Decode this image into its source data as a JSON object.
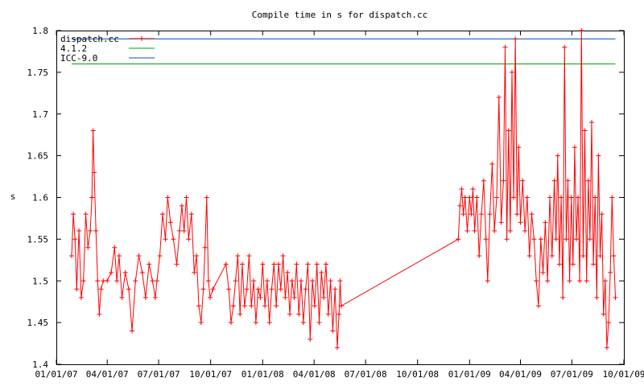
{
  "chart_data": {
    "type": "line",
    "title": "Compile time in s for dispatch.cc",
    "ylabel": "s",
    "xlabel": "",
    "x_axis": "date",
    "xlim": [
      "2007-01-01",
      "2009-10-01"
    ],
    "ylim": [
      1.4,
      1.8
    ],
    "grid": false,
    "legend_position": "top-left",
    "x_ticks": [
      {
        "value": "2007-01-01",
        "label": "01/01/07"
      },
      {
        "value": "2007-04-01",
        "label": "04/01/07"
      },
      {
        "value": "2007-07-01",
        "label": "07/01/07"
      },
      {
        "value": "2007-10-01",
        "label": "10/01/07"
      },
      {
        "value": "2008-01-01",
        "label": "01/01/08"
      },
      {
        "value": "2008-04-01",
        "label": "04/01/08"
      },
      {
        "value": "2008-07-01",
        "label": "07/01/08"
      },
      {
        "value": "2008-10-01",
        "label": "10/01/08"
      },
      {
        "value": "2009-01-01",
        "label": "01/01/09"
      },
      {
        "value": "2009-04-01",
        "label": "04/01/09"
      },
      {
        "value": "2009-07-01",
        "label": "07/01/09"
      },
      {
        "value": "2009-10-01",
        "label": "10/01/09"
      }
    ],
    "y_ticks": [
      {
        "value": 1.4,
        "label": "1.4"
      },
      {
        "value": 1.45,
        "label": "1.45"
      },
      {
        "value": 1.5,
        "label": "1.5"
      },
      {
        "value": 1.55,
        "label": "1.55"
      },
      {
        "value": 1.6,
        "label": "1.6"
      },
      {
        "value": 1.65,
        "label": "1.65"
      },
      {
        "value": 1.7,
        "label": "1.7"
      },
      {
        "value": 1.75,
        "label": "1.75"
      },
      {
        "value": 1.8,
        "label": "1.8"
      }
    ],
    "series": [
      {
        "name": "dispatch.cc",
        "color": "#ff0000",
        "marker": "plus",
        "points": [
          [
            "2007-01-28",
            1.53
          ],
          [
            "2007-01-31",
            1.58
          ],
          [
            "2007-02-03",
            1.55
          ],
          [
            "2007-02-06",
            1.49
          ],
          [
            "2007-02-10",
            1.56
          ],
          [
            "2007-02-14",
            1.48
          ],
          [
            "2007-02-18",
            1.5
          ],
          [
            "2007-02-22",
            1.58
          ],
          [
            "2007-02-26",
            1.54
          ],
          [
            "2007-03-02",
            1.56
          ],
          [
            "2007-03-05",
            1.6
          ],
          [
            "2007-03-07",
            1.68
          ],
          [
            "2007-03-09",
            1.63
          ],
          [
            "2007-03-12",
            1.56
          ],
          [
            "2007-03-15",
            1.5
          ],
          [
            "2007-03-18",
            1.46
          ],
          [
            "2007-03-21",
            1.49
          ],
          [
            "2007-03-25",
            1.5
          ],
          [
            "2007-04-01",
            1.5
          ],
          [
            "2007-04-08",
            1.51
          ],
          [
            "2007-04-14",
            1.54
          ],
          [
            "2007-04-18",
            1.5
          ],
          [
            "2007-04-22",
            1.53
          ],
          [
            "2007-04-27",
            1.48
          ],
          [
            "2007-05-03",
            1.51
          ],
          [
            "2007-05-09",
            1.49
          ],
          [
            "2007-05-15",
            1.44
          ],
          [
            "2007-05-21",
            1.5
          ],
          [
            "2007-05-27",
            1.53
          ],
          [
            "2007-06-02",
            1.51
          ],
          [
            "2007-06-08",
            1.48
          ],
          [
            "2007-06-14",
            1.52
          ],
          [
            "2007-06-20",
            1.5
          ],
          [
            "2007-06-25",
            1.48
          ],
          [
            "2007-06-28",
            1.5
          ],
          [
            "2007-07-03",
            1.53
          ],
          [
            "2007-07-08",
            1.58
          ],
          [
            "2007-07-13",
            1.55
          ],
          [
            "2007-07-17",
            1.6
          ],
          [
            "2007-07-22",
            1.57
          ],
          [
            "2007-07-27",
            1.55
          ],
          [
            "2007-08-02",
            1.52
          ],
          [
            "2007-08-07",
            1.56
          ],
          [
            "2007-08-11",
            1.59
          ],
          [
            "2007-08-15",
            1.56
          ],
          [
            "2007-08-19",
            1.6
          ],
          [
            "2007-08-23",
            1.55
          ],
          [
            "2007-08-28",
            1.58
          ],
          [
            "2007-09-02",
            1.51
          ],
          [
            "2007-09-06",
            1.53
          ],
          [
            "2007-09-10",
            1.47
          ],
          [
            "2007-09-14",
            1.45
          ],
          [
            "2007-09-18",
            1.49
          ],
          [
            "2007-09-21",
            1.54
          ],
          [
            "2007-09-24",
            1.6
          ],
          [
            "2007-09-27",
            1.5
          ],
          [
            "2007-09-30",
            1.48
          ],
          [
            "2007-10-05",
            1.49
          ],
          [
            "2007-10-28",
            1.52
          ],
          [
            "2007-11-02",
            1.49
          ],
          [
            "2007-11-06",
            1.45
          ],
          [
            "2007-11-10",
            1.47
          ],
          [
            "2007-11-14",
            1.5
          ],
          [
            "2007-11-18",
            1.53
          ],
          [
            "2007-11-22",
            1.46
          ],
          [
            "2007-11-26",
            1.52
          ],
          [
            "2007-11-30",
            1.47
          ],
          [
            "2007-12-04",
            1.49
          ],
          [
            "2007-12-08",
            1.53
          ],
          [
            "2007-12-12",
            1.47
          ],
          [
            "2007-12-16",
            1.5
          ],
          [
            "2007-12-20",
            1.45
          ],
          [
            "2007-12-24",
            1.49
          ],
          [
            "2007-12-28",
            1.48
          ],
          [
            "2008-01-01",
            1.52
          ],
          [
            "2008-01-05",
            1.47
          ],
          [
            "2008-01-09",
            1.5
          ],
          [
            "2008-01-13",
            1.45
          ],
          [
            "2008-01-17",
            1.49
          ],
          [
            "2008-01-21",
            1.52
          ],
          [
            "2008-01-25",
            1.47
          ],
          [
            "2008-01-29",
            1.52
          ],
          [
            "2008-02-02",
            1.49
          ],
          [
            "2008-02-06",
            1.53
          ],
          [
            "2008-02-10",
            1.48
          ],
          [
            "2008-02-14",
            1.51
          ],
          [
            "2008-02-18",
            1.46
          ],
          [
            "2008-02-22",
            1.5
          ],
          [
            "2008-02-26",
            1.48
          ],
          [
            "2008-03-01",
            1.52
          ],
          [
            "2008-03-05",
            1.46
          ],
          [
            "2008-03-09",
            1.5
          ],
          [
            "2008-03-13",
            1.45
          ],
          [
            "2008-03-17",
            1.49
          ],
          [
            "2008-03-21",
            1.52
          ],
          [
            "2008-03-25",
            1.43
          ],
          [
            "2008-03-29",
            1.5
          ],
          [
            "2008-04-02",
            1.47
          ],
          [
            "2008-04-06",
            1.52
          ],
          [
            "2008-04-10",
            1.45
          ],
          [
            "2008-04-14",
            1.51
          ],
          [
            "2008-04-18",
            1.48
          ],
          [
            "2008-04-22",
            1.52
          ],
          [
            "2008-04-26",
            1.46
          ],
          [
            "2008-04-30",
            1.5
          ],
          [
            "2008-05-04",
            1.44
          ],
          [
            "2008-05-08",
            1.49
          ],
          [
            "2008-05-12",
            1.42
          ],
          [
            "2008-05-15",
            1.46
          ],
          [
            "2008-05-17",
            1.5
          ],
          [
            "2008-05-19",
            1.47
          ],
          [
            "2008-12-12",
            1.55
          ],
          [
            "2008-12-15",
            1.59
          ],
          [
            "2008-12-18",
            1.61
          ],
          [
            "2008-12-21",
            1.58
          ],
          [
            "2008-12-24",
            1.6
          ],
          [
            "2008-12-28",
            1.56
          ],
          [
            "2009-01-01",
            1.6
          ],
          [
            "2009-01-04",
            1.58
          ],
          [
            "2009-01-07",
            1.61
          ],
          [
            "2009-01-10",
            1.56
          ],
          [
            "2009-01-14",
            1.6
          ],
          [
            "2009-01-18",
            1.53
          ],
          [
            "2009-01-22",
            1.58
          ],
          [
            "2009-01-26",
            1.62
          ],
          [
            "2009-01-30",
            1.55
          ],
          [
            "2009-02-02",
            1.5
          ],
          [
            "2009-02-06",
            1.58
          ],
          [
            "2009-02-10",
            1.64
          ],
          [
            "2009-02-14",
            1.56
          ],
          [
            "2009-02-18",
            1.6
          ],
          [
            "2009-02-22",
            1.72
          ],
          [
            "2009-02-26",
            1.57
          ],
          [
            "2009-03-02",
            1.62
          ],
          [
            "2009-03-05",
            1.78
          ],
          [
            "2009-03-08",
            1.55
          ],
          [
            "2009-03-11",
            1.68
          ],
          [
            "2009-03-14",
            1.56
          ],
          [
            "2009-03-17",
            1.75
          ],
          [
            "2009-03-20",
            1.6
          ],
          [
            "2009-03-23",
            1.79
          ],
          [
            "2009-03-26",
            1.58
          ],
          [
            "2009-03-29",
            1.66
          ],
          [
            "2009-04-01",
            1.57
          ],
          [
            "2009-04-05",
            1.62
          ],
          [
            "2009-04-09",
            1.56
          ],
          [
            "2009-04-13",
            1.6
          ],
          [
            "2009-04-17",
            1.53
          ],
          [
            "2009-04-21",
            1.58
          ],
          [
            "2009-04-25",
            1.55
          ],
          [
            "2009-04-29",
            1.5
          ],
          [
            "2009-05-03",
            1.47
          ],
          [
            "2009-05-07",
            1.55
          ],
          [
            "2009-05-11",
            1.51
          ],
          [
            "2009-05-15",
            1.57
          ],
          [
            "2009-05-19",
            1.5
          ],
          [
            "2009-05-23",
            1.6
          ],
          [
            "2009-05-27",
            1.53
          ],
          [
            "2009-05-31",
            1.62
          ],
          [
            "2009-06-03",
            1.55
          ],
          [
            "2009-06-06",
            1.65
          ],
          [
            "2009-06-09",
            1.52
          ],
          [
            "2009-06-12",
            1.6
          ],
          [
            "2009-06-15",
            1.48
          ],
          [
            "2009-06-18",
            1.78
          ],
          [
            "2009-06-21",
            1.55
          ],
          [
            "2009-06-24",
            1.62
          ],
          [
            "2009-06-27",
            1.5
          ],
          [
            "2009-06-30",
            1.6
          ],
          [
            "2009-07-03",
            1.52
          ],
          [
            "2009-07-06",
            1.66
          ],
          [
            "2009-07-09",
            1.55
          ],
          [
            "2009-07-12",
            1.6
          ],
          [
            "2009-07-15",
            1.5
          ],
          [
            "2009-07-18",
            1.8
          ],
          [
            "2009-07-21",
            1.53
          ],
          [
            "2009-07-24",
            1.68
          ],
          [
            "2009-07-27",
            1.5
          ],
          [
            "2009-07-30",
            1.62
          ],
          [
            "2009-08-02",
            1.55
          ],
          [
            "2009-08-05",
            1.69
          ],
          [
            "2009-08-08",
            1.52
          ],
          [
            "2009-08-11",
            1.6
          ],
          [
            "2009-08-14",
            1.48
          ],
          [
            "2009-08-17",
            1.65
          ],
          [
            "2009-08-20",
            1.53
          ],
          [
            "2009-08-23",
            1.58
          ],
          [
            "2009-08-26",
            1.46
          ],
          [
            "2009-08-29",
            1.5
          ],
          [
            "2009-09-01",
            1.42
          ],
          [
            "2009-09-04",
            1.45
          ],
          [
            "2009-09-07",
            1.51
          ],
          [
            "2009-09-10",
            1.6
          ],
          [
            "2009-09-13",
            1.53
          ],
          [
            "2009-09-16",
            1.48
          ]
        ]
      },
      {
        "name": "4.1.2",
        "color": "#00a000",
        "marker": "none",
        "points": [
          [
            "2007-01-28",
            1.76
          ],
          [
            "2009-09-16",
            1.76
          ]
        ]
      },
      {
        "name": "ICC-9.0",
        "color": "#0050c8",
        "marker": "none",
        "points": [
          [
            "2007-01-28",
            1.79
          ],
          [
            "2009-09-16",
            1.79
          ]
        ]
      }
    ]
  }
}
